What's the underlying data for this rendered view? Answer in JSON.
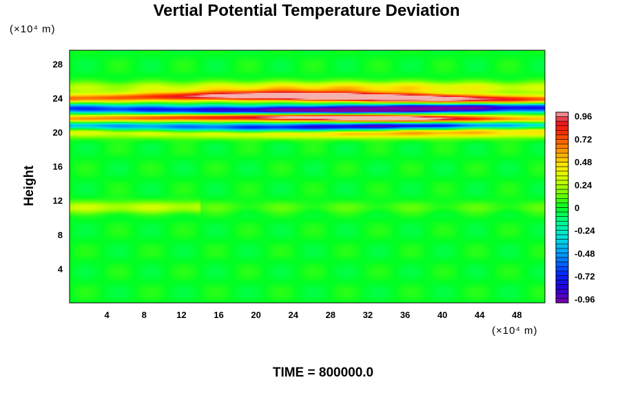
{
  "chart_data": {
    "type": "heatmap",
    "title": "Vertial Potential Temperature Deviation",
    "ylabel": "Height",
    "yunit": "(×10⁴ m)",
    "xunit": "(×10⁴ m)",
    "footer": "TIME = 800000.0",
    "x_ticks": [
      "4",
      "8",
      "12",
      "16",
      "20",
      "24",
      "28",
      "32",
      "36",
      "40",
      "44",
      "48"
    ],
    "y_ticks": [
      "4",
      "8",
      "12",
      "16",
      "20",
      "24",
      "28"
    ],
    "xlim": [
      0,
      51
    ],
    "ylim": [
      0,
      29.6
    ],
    "colorbar": {
      "range": [
        -1.0,
        1.0
      ],
      "tick_labels": [
        "0.96",
        "0.72",
        "0.48",
        "0.24",
        "0",
        "-0.24",
        "-0.48",
        "-0.72",
        "-0.96"
      ]
    },
    "bands": [
      {
        "y": 24.0,
        "amplitude": 1.0
      },
      {
        "y": 22.7,
        "amplitude": -1.0
      },
      {
        "y": 21.6,
        "amplitude": 1.0
      },
      {
        "y": 20.7,
        "amplitude": -1.0
      },
      {
        "y": 20.1,
        "amplitude": 0.6
      },
      {
        "y": 25.2,
        "amplitude": 0.35
      },
      {
        "y": 11.2,
        "amplitude": 0.2
      }
    ],
    "colors": {
      "background": "#00ff22",
      "max": "#f5b0b0",
      "min": "#7a00a8"
    }
  }
}
